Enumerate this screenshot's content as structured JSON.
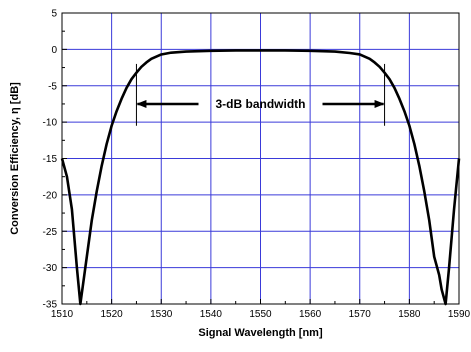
{
  "chart_data": {
    "type": "line",
    "title": "",
    "xlabel": "Signal Wavelength [nm]",
    "ylabel": "Conversion Efficiency, η [dB]",
    "xlim": [
      1510,
      1590
    ],
    "ylim": [
      -35,
      5
    ],
    "xticks": [
      1510,
      1520,
      1530,
      1540,
      1550,
      1560,
      1570,
      1580,
      1590
    ],
    "yticks": [
      5,
      0,
      -5,
      -10,
      -15,
      -20,
      -25,
      -30,
      -35
    ],
    "grid": true,
    "grid_color": "#3a3ad9",
    "line_color": "#000000",
    "series": [
      {
        "x": [
          1510,
          1511,
          1512,
          1513,
          1513.7,
          1514.5,
          1515,
          1516,
          1517,
          1518,
          1519,
          1520,
          1521,
          1522,
          1523,
          1524,
          1525,
          1526,
          1527,
          1528,
          1530,
          1532,
          1535,
          1540,
          1545,
          1550,
          1555,
          1560,
          1565,
          1568,
          1570,
          1572,
          1573,
          1574,
          1575,
          1576,
          1577,
          1578,
          1579,
          1580,
          1581,
          1582,
          1583,
          1584,
          1585,
          1586,
          1586.5,
          1587.3,
          1588,
          1589,
          1590
        ],
        "y": [
          -15,
          -17.5,
          -22,
          -30,
          -35,
          -31,
          -28.5,
          -23.5,
          -19.5,
          -16,
          -13,
          -10.5,
          -8.5,
          -6.8,
          -5.3,
          -4.1,
          -3.2,
          -2.4,
          -1.8,
          -1.3,
          -0.7,
          -0.45,
          -0.3,
          -0.2,
          -0.15,
          -0.15,
          -0.15,
          -0.2,
          -0.3,
          -0.5,
          -0.7,
          -1.3,
          -1.8,
          -2.4,
          -3.2,
          -4.1,
          -5.3,
          -6.8,
          -8.5,
          -10.5,
          -13,
          -16,
          -19.5,
          -23.5,
          -28.5,
          -31,
          -33,
          -35,
          -30,
          -22,
          -15
        ]
      }
    ],
    "annotation": {
      "text": "3-dB bandwidth",
      "x_start": 1525,
      "x_end": 1575,
      "y": -7.5,
      "marker_y_top": -2,
      "marker_y_bottom": -10.5
    }
  }
}
